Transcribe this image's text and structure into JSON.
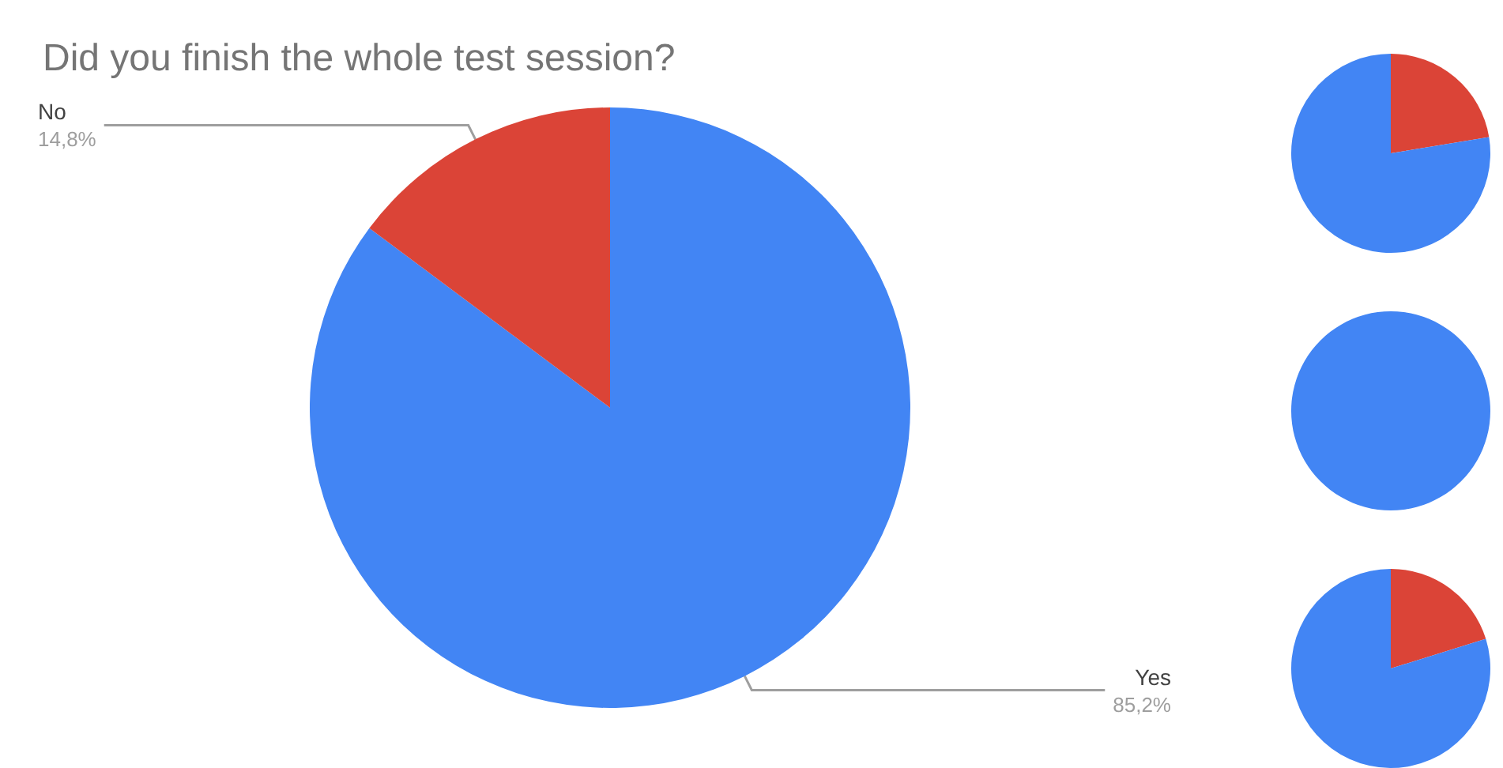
{
  "chart_data": [
    {
      "type": "pie",
      "title": "Did you finish the whole test session?",
      "categories": [
        "Yes",
        "No"
      ],
      "values": [
        85.2,
        14.8
      ],
      "value_labels": [
        "85,2%",
        "14,8%"
      ],
      "colors": [
        "#4285f4",
        "#db4437"
      ]
    },
    {
      "type": "pie",
      "categories": [
        null,
        null
      ],
      "values": [
        22.4,
        77.6
      ],
      "colors": [
        "#db4437",
        "#4285f4"
      ]
    },
    {
      "type": "pie",
      "categories": [
        null
      ],
      "values": [
        100
      ],
      "colors": [
        "#4285f4"
      ]
    },
    {
      "type": "pie",
      "categories": [
        null,
        null
      ],
      "values": [
        20.2,
        79.8
      ],
      "colors": [
        "#db4437",
        "#4285f4"
      ]
    }
  ]
}
